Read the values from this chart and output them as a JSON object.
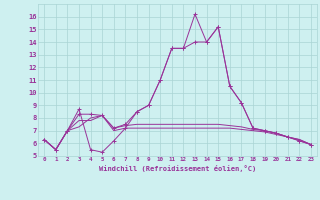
{
  "xlabel": "Windchill (Refroidissement éolien,°C)",
  "xlim": [
    -0.5,
    23.5
  ],
  "ylim": [
    5,
    17
  ],
  "xticks": [
    0,
    1,
    2,
    3,
    4,
    5,
    6,
    7,
    8,
    9,
    10,
    11,
    12,
    13,
    14,
    15,
    16,
    17,
    18,
    19,
    20,
    21,
    22,
    23
  ],
  "yticks": [
    5,
    6,
    7,
    8,
    9,
    10,
    11,
    12,
    13,
    14,
    15,
    16
  ],
  "bg_color": "#cef0f0",
  "grid_color": "#aad4d4",
  "line_color": "#993399",
  "series": [
    [
      6.3,
      5.5,
      7.0,
      8.7,
      5.5,
      5.3,
      6.2,
      7.2,
      8.5,
      9.0,
      11.0,
      13.5,
      13.5,
      16.2,
      14.0,
      15.2,
      10.5,
      9.2,
      7.2,
      7.0,
      6.8,
      6.5,
      6.2,
      5.9
    ],
    [
      6.3,
      5.5,
      7.0,
      7.3,
      8.0,
      8.2,
      7.0,
      7.2,
      7.2,
      7.2,
      7.2,
      7.2,
      7.2,
      7.2,
      7.2,
      7.2,
      7.2,
      7.1,
      7.0,
      6.9,
      6.7,
      6.5,
      6.3,
      5.9
    ],
    [
      6.3,
      5.5,
      7.0,
      7.8,
      7.8,
      8.2,
      7.2,
      7.4,
      7.5,
      7.5,
      7.5,
      7.5,
      7.5,
      7.5,
      7.5,
      7.5,
      7.4,
      7.3,
      7.1,
      7.0,
      6.8,
      6.5,
      6.3,
      5.9
    ],
    [
      6.3,
      5.5,
      7.0,
      8.3,
      8.3,
      8.2,
      7.2,
      7.5,
      8.5,
      9.0,
      11.0,
      13.5,
      13.5,
      14.0,
      14.0,
      15.2,
      10.5,
      9.2,
      7.2,
      7.0,
      6.8,
      6.5,
      6.2,
      5.9
    ]
  ],
  "markers": [
    true,
    false,
    false,
    true
  ]
}
